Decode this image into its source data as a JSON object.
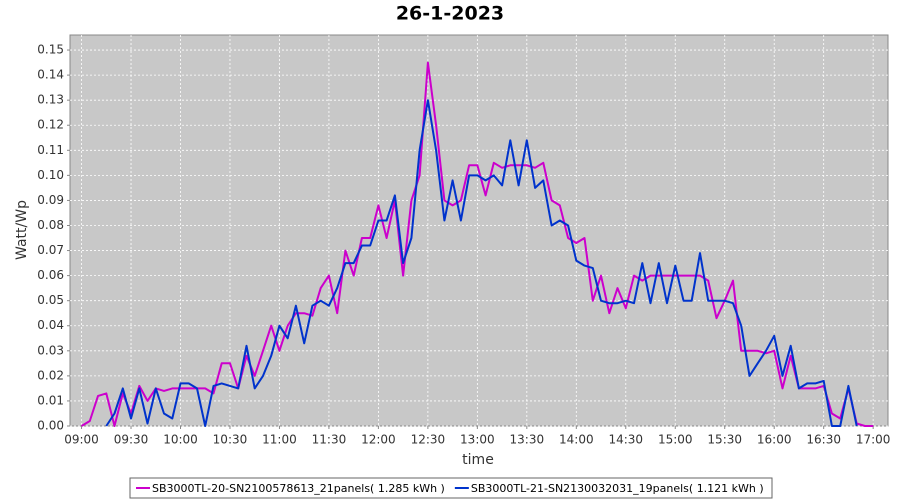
{
  "chart_data": {
    "type": "line",
    "title": "26-1-2023",
    "x_label": "time",
    "y_label": "Watt/Wp",
    "x": [
      "09:00",
      "09:05",
      "09:10",
      "09:15",
      "09:20",
      "09:25",
      "09:30",
      "09:35",
      "09:40",
      "09:45",
      "09:50",
      "09:55",
      "10:00",
      "10:05",
      "10:10",
      "10:15",
      "10:20",
      "10:25",
      "10:30",
      "10:35",
      "10:40",
      "10:45",
      "10:50",
      "10:55",
      "11:00",
      "11:05",
      "11:10",
      "11:15",
      "11:20",
      "11:25",
      "11:30",
      "11:35",
      "11:40",
      "11:45",
      "11:50",
      "11:55",
      "12:00",
      "12:05",
      "12:10",
      "12:15",
      "12:20",
      "12:25",
      "12:30",
      "12:35",
      "12:40",
      "12:45",
      "12:50",
      "12:55",
      "13:00",
      "13:05",
      "13:10",
      "13:15",
      "13:20",
      "13:25",
      "13:30",
      "13:35",
      "13:40",
      "13:45",
      "13:50",
      "13:55",
      "14:00",
      "14:05",
      "14:10",
      "14:15",
      "14:20",
      "14:25",
      "14:30",
      "14:35",
      "14:40",
      "14:45",
      "14:50",
      "14:55",
      "15:00",
      "15:05",
      "15:10",
      "15:15",
      "15:20",
      "15:25",
      "15:30",
      "15:35",
      "15:40",
      "15:45",
      "15:50",
      "15:55",
      "16:00",
      "16:05",
      "16:10",
      "16:15",
      "16:20",
      "16:25",
      "16:30",
      "16:35",
      "16:40",
      "16:45",
      "16:50",
      "16:55",
      "17:00"
    ],
    "series": [
      {
        "name": "SB3000TL-20-SN2100578613_21panels( 1.285 kWh )",
        "color": "#cc00cc",
        "values": [
          0,
          0.002,
          0.012,
          0.013,
          0,
          0.013,
          0.005,
          0.016,
          0.01,
          0.015,
          0.014,
          0.015,
          0.015,
          0.015,
          0.015,
          0.015,
          0.013,
          0.025,
          0.025,
          0.015,
          0.028,
          0.02,
          0.03,
          0.04,
          0.03,
          0.04,
          0.045,
          0.045,
          0.044,
          0.055,
          0.06,
          0.045,
          0.07,
          0.06,
          0.075,
          0.075,
          0.088,
          0.075,
          0.09,
          0.06,
          0.09,
          0.1,
          0.145,
          0.12,
          0.09,
          0.088,
          0.09,
          0.104,
          0.104,
          0.092,
          0.105,
          0.103,
          0.104,
          0.104,
          0.104,
          0.103,
          0.105,
          0.09,
          0.088,
          0.075,
          0.073,
          0.075,
          0.05,
          0.06,
          0.045,
          0.055,
          0.047,
          0.06,
          0.058,
          0.06,
          0.06,
          0.06,
          0.06,
          0.06,
          0.06,
          0.06,
          0.058,
          0.043,
          0.05,
          0.058,
          0.03,
          0.03,
          0.03,
          0.029,
          0.03,
          0.015,
          0.028,
          0.015,
          0.015,
          0.015,
          0.016,
          0.005,
          0.003,
          0.015,
          0.001,
          0,
          0
        ]
      },
      {
        "name": "SB3000TL-21-SN2130032031_19panels( 1.121 kWh )",
        "color": "#0033cc",
        "values": [
          null,
          null,
          null,
          0,
          0.005,
          0.015,
          0.003,
          0.015,
          0.001,
          0.015,
          0.005,
          0.003,
          0.017,
          0.017,
          0.015,
          0,
          0.016,
          0.017,
          0.016,
          0.015,
          0.032,
          0.015,
          0.02,
          0.028,
          0.04,
          0.035,
          0.048,
          0.033,
          0.048,
          0.05,
          0.048,
          0.055,
          0.065,
          0.065,
          0.072,
          0.072,
          0.082,
          0.082,
          0.092,
          0.065,
          0.075,
          0.11,
          0.13,
          0.11,
          0.082,
          0.098,
          0.082,
          0.1,
          0.1,
          0.098,
          0.1,
          0.096,
          0.114,
          0.096,
          0.114,
          0.095,
          0.098,
          0.08,
          0.082,
          0.08,
          0.066,
          0.064,
          0.063,
          0.05,
          0.049,
          0.049,
          0.05,
          0.049,
          0.065,
          0.049,
          0.065,
          0.049,
          0.064,
          0.05,
          0.05,
          0.069,
          0.05,
          0.05,
          0.05,
          0.049,
          0.04,
          0.02,
          0.025,
          0.03,
          0.036,
          0.02,
          0.032,
          0.015,
          0.017,
          0.017,
          0.018,
          0,
          0,
          0.016,
          0,
          null,
          null
        ]
      }
    ],
    "xlim": [
      "08:53",
      "17:09"
    ],
    "xticks": [
      "09:00",
      "09:30",
      "10:00",
      "10:30",
      "11:00",
      "11:30",
      "12:00",
      "12:30",
      "13:00",
      "13:30",
      "14:00",
      "14:30",
      "15:00",
      "15:30",
      "16:00",
      "16:30",
      "17:00"
    ],
    "ylim": [
      0,
      0.156
    ],
    "yticks": [
      {
        "value": 0,
        "label": "0.00"
      },
      {
        "value": 0.01,
        "label": "0.01"
      },
      {
        "value": 0.02,
        "label": "0.02"
      },
      {
        "value": 0.03,
        "label": "0.03"
      },
      {
        "value": 0.04,
        "label": "0.04"
      },
      {
        "value": 0.05,
        "label": "0.05"
      },
      {
        "value": 0.06,
        "label": "0.06"
      },
      {
        "value": 0.07,
        "label": "0.07"
      },
      {
        "value": 0.08,
        "label": "0.08"
      },
      {
        "value": 0.09,
        "label": "0.09"
      },
      {
        "value": 0.1,
        "label": "0.10"
      },
      {
        "value": 0.11,
        "label": "0.11"
      },
      {
        "value": 0.12,
        "label": "0.12"
      },
      {
        "value": 0.13,
        "label": "0.13"
      },
      {
        "value": 0.14,
        "label": "0.14"
      },
      {
        "value": 0.15,
        "label": "0.15"
      }
    ],
    "grid": true
  }
}
